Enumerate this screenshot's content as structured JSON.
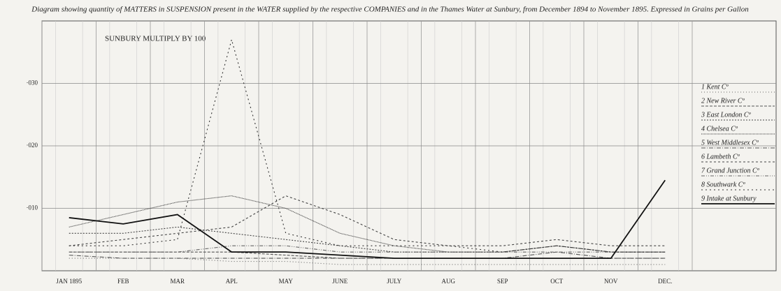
{
  "chart_data": {
    "type": "line",
    "title": "Diagram showing quantity of MATTERS in SUSPENSION present in the WATER supplied by the respective COMPANIES and in the Thames Water at Sunbury, from December 1894 to November 1895. Expressed in Grains per Gallon",
    "annotation": "SUNBURY MULTIPLY BY 100",
    "categories": [
      "JAN 1895",
      "FEB",
      "MAR",
      "APL",
      "MAY",
      "JUNE",
      "JULY",
      "AUG",
      "SEP",
      "OCT",
      "NOV",
      "DEC."
    ],
    "ylim": [
      0,
      0.04
    ],
    "yticks": [
      {
        "value": 0.01,
        "label": "·010"
      },
      {
        "value": 0.02,
        "label": "·020"
      },
      {
        "value": 0.03,
        "label": "·030"
      }
    ],
    "grid": true,
    "series": [
      {
        "name": "1 Kent Cº",
        "color": "#666",
        "dash": "1 3",
        "values": [
          0.002,
          0.002,
          0.002,
          0.0015,
          0.0015,
          0.001,
          0.001,
          0.001,
          0.001,
          0.001,
          0.001,
          0.001
        ]
      },
      {
        "name": "2 New River Cº",
        "color": "#555",
        "dash": "4 2",
        "values": [
          0.003,
          0.003,
          0.003,
          0.003,
          0.0025,
          0.002,
          0.002,
          0.002,
          0.002,
          0.002,
          0.002,
          0.002
        ]
      },
      {
        "name": "3 East London Cº",
        "color": "#444",
        "dash": "2 2",
        "values": [
          0.006,
          0.006,
          0.007,
          0.006,
          0.005,
          0.004,
          0.003,
          0.003,
          0.003,
          0.004,
          0.003,
          0.003
        ]
      },
      {
        "name": "4 Chelsea Cº",
        "color": "#333",
        "dash": "1 1",
        "values": [
          0.007,
          0.009,
          0.011,
          0.012,
          0.01,
          0.006,
          0.004,
          0.003,
          0.003,
          0.004,
          0.003,
          0.003
        ]
      },
      {
        "name": "5 West Middlesex Cº",
        "color": "#555",
        "dash": "6 2 1 2",
        "values": [
          0.0025,
          0.002,
          0.002,
          0.002,
          0.002,
          0.002,
          0.002,
          0.002,
          0.002,
          0.003,
          0.002,
          0.002
        ]
      },
      {
        "name": "6 Lambeth Cº",
        "color": "#444",
        "dash": "3 3",
        "values": [
          0.004,
          0.005,
          0.006,
          0.007,
          0.012,
          0.009,
          0.005,
          0.004,
          0.004,
          0.005,
          0.004,
          0.004
        ]
      },
      {
        "name": "7 Grand Junction Cº",
        "color": "#666",
        "dash": "5 2 1 2 1 2",
        "values": [
          0.003,
          0.003,
          0.003,
          0.004,
          0.004,
          0.003,
          0.003,
          0.003,
          0.003,
          0.003,
          0.003,
          0.003
        ]
      },
      {
        "name": "8 Southwark Cº",
        "color": "#333",
        "dash": "2 4",
        "values": [
          0.004,
          0.004,
          0.005,
          0.037,
          0.006,
          0.004,
          0.004,
          0.004,
          0.003,
          0.004,
          0.003,
          0.003
        ]
      },
      {
        "name": "9 Intake at Sunbury",
        "color": "#111",
        "dash": "none",
        "values": [
          0.0085,
          0.0075,
          0.009,
          0.003,
          0.003,
          0.0025,
          0.002,
          0.002,
          0.002,
          0.002,
          0.002,
          0.0145
        ]
      }
    ]
  }
}
